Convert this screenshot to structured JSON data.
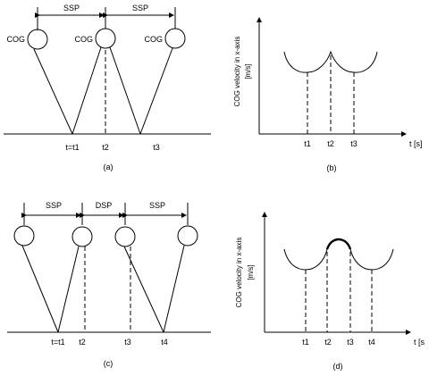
{
  "panels": {
    "a": {
      "caption": "(a)",
      "spans": [
        "SSP",
        "SSP"
      ],
      "body_labels": [
        "COG",
        "COG",
        "COG"
      ],
      "time_labels": [
        "t=t1",
        "t2",
        "t3"
      ]
    },
    "b": {
      "caption": "(b)",
      "ylabel_line1": "COG velocity in x-axis",
      "ylabel_line2": "[m/s]",
      "xunit": "t [s]",
      "ticks": [
        "t1",
        "t2",
        "t3"
      ]
    },
    "c": {
      "caption": "(c)",
      "spans": [
        "SSP",
        "DSP",
        "SSP"
      ],
      "time_labels": [
        "t=t1",
        "t2",
        "t3",
        "t4"
      ]
    },
    "d": {
      "caption": "(d)",
      "ylabel_line1": "COG velocity in x-axis",
      "ylabel_line2": "[m/s]",
      "xunit": "t [s",
      "ticks": [
        "t1",
        "t2",
        "t3",
        "t4"
      ]
    }
  }
}
